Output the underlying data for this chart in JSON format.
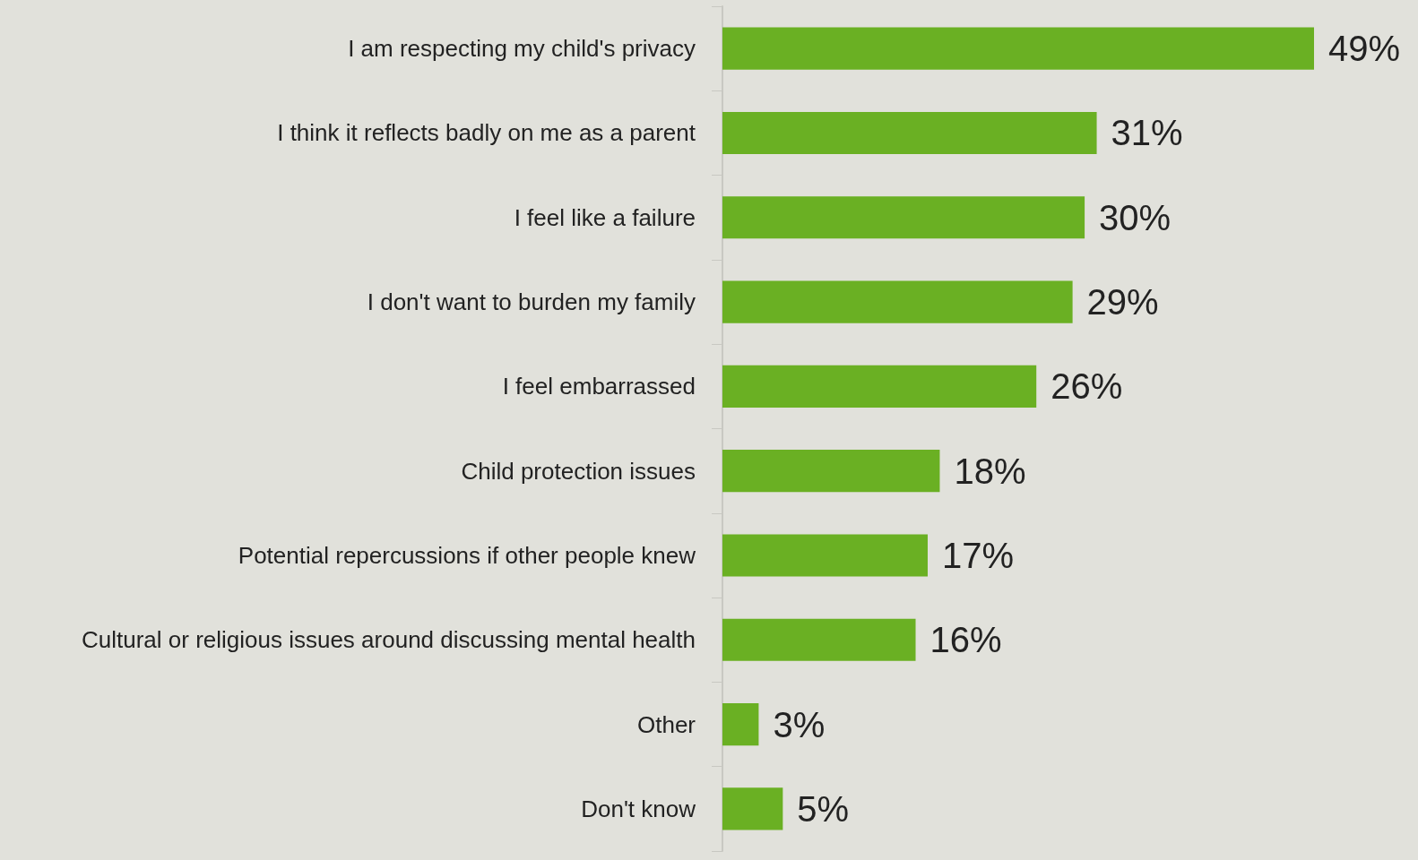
{
  "chart_data": {
    "type": "bar",
    "orientation": "horizontal",
    "categories": [
      "I am respecting my child's privacy",
      "I think it reflects badly on me as a parent",
      "I feel like a failure",
      "I don't want to burden my family",
      "I feel embarrassed",
      "Child protection issues",
      "Potential repercussions if other people knew",
      "Cultural or religious issues around discussing mental health",
      "Other",
      "Don't know"
    ],
    "values": [
      49,
      31,
      30,
      29,
      26,
      18,
      17,
      16,
      3,
      5
    ],
    "value_labels": [
      "49%",
      "31%",
      "30%",
      "29%",
      "26%",
      "18%",
      "17%",
      "16%",
      "3%",
      "5%"
    ],
    "color": "#6ab023"
  }
}
